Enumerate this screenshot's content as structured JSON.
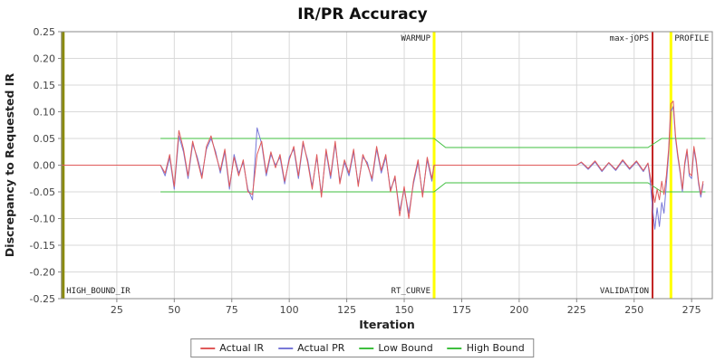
{
  "chart_data": {
    "type": "line",
    "title": "IR/PR Accuracy",
    "xlabel": "Iteration",
    "ylabel": "Discrepancy to Requested IR",
    "xlim": [
      1,
      284
    ],
    "ylim": [
      -0.25,
      0.25
    ],
    "x_ticks": [
      25,
      50,
      75,
      100,
      125,
      150,
      175,
      200,
      225,
      250,
      275
    ],
    "y_ticks": [
      -0.25,
      -0.2,
      -0.15,
      -0.1,
      -0.05,
      0,
      0.05,
      0.1,
      0.15,
      0.2,
      0.25
    ],
    "y_tick_labels": [
      "-0.25",
      "-0.20",
      "-0.15",
      "-0.10",
      "-0.05",
      "0.00",
      "0.05",
      "0.10",
      "0.15",
      "0.20",
      "0.25"
    ],
    "grid": true,
    "legend_position": "bottom",
    "colors": {
      "background": "#ffffff",
      "plot_border": "#888888",
      "grid": "#d9d9d9",
      "tick_text": "#444444",
      "title": "#111111"
    },
    "markers": [
      {
        "x": 1.5,
        "color": "#8b8b00",
        "width": 4,
        "top_label": "",
        "bottom_label": "HIGH_BOUND_IR",
        "side": "right"
      },
      {
        "x": 163,
        "color": "#ffff00",
        "width": 3,
        "top_label": "WARMUP",
        "bottom_label": "RT_CURVE",
        "side": "left"
      },
      {
        "x": 258,
        "color": "#c22222",
        "width": 2,
        "top_label": "max-jOPS",
        "bottom_label": "VALIDATION",
        "side": "left"
      },
      {
        "x": 266,
        "color": "#ffff00",
        "width": 3,
        "top_label": "PROFILE",
        "bottom_label": "",
        "side": "right"
      }
    ],
    "series": [
      {
        "name": "Actual IR",
        "color": "#e05a5a",
        "points": [
          [
            1,
            0
          ],
          [
            15,
            0
          ],
          [
            30,
            0
          ],
          [
            44,
            0
          ],
          [
            46,
            -0.015
          ],
          [
            48,
            0.02
          ],
          [
            50,
            -0.04
          ],
          [
            52,
            0.065
          ],
          [
            54,
            0.03
          ],
          [
            56,
            -0.02
          ],
          [
            58,
            0.045
          ],
          [
            60,
            0.01
          ],
          [
            62,
            -0.025
          ],
          [
            64,
            0.035
          ],
          [
            66,
            0.055
          ],
          [
            68,
            0.02
          ],
          [
            70,
            -0.01
          ],
          [
            72,
            0.03
          ],
          [
            74,
            -0.04
          ],
          [
            76,
            0.015
          ],
          [
            78,
            -0.02
          ],
          [
            80,
            0.01
          ],
          [
            82,
            -0.05
          ],
          [
            84,
            -0.055
          ],
          [
            86,
            0.02
          ],
          [
            88,
            0.045
          ],
          [
            90,
            -0.015
          ],
          [
            92,
            0.025
          ],
          [
            94,
            -0.005
          ],
          [
            96,
            0.02
          ],
          [
            98,
            -0.03
          ],
          [
            100,
            0.01
          ],
          [
            102,
            0.035
          ],
          [
            104,
            -0.02
          ],
          [
            106,
            0.045
          ],
          [
            108,
            0.005
          ],
          [
            110,
            -0.045
          ],
          [
            112,
            0.02
          ],
          [
            114,
            -0.06
          ],
          [
            116,
            0.03
          ],
          [
            118,
            -0.02
          ],
          [
            120,
            0.045
          ],
          [
            122,
            -0.035
          ],
          [
            124,
            0.01
          ],
          [
            126,
            -0.015
          ],
          [
            128,
            0.03
          ],
          [
            130,
            -0.04
          ],
          [
            132,
            0.02
          ],
          [
            134,
            0
          ],
          [
            136,
            -0.025
          ],
          [
            138,
            0.035
          ],
          [
            140,
            -0.01
          ],
          [
            142,
            0.02
          ],
          [
            144,
            -0.05
          ],
          [
            146,
            -0.02
          ],
          [
            148,
            -0.095
          ],
          [
            150,
            -0.04
          ],
          [
            152,
            -0.1
          ],
          [
            154,
            -0.03
          ],
          [
            156,
            0.01
          ],
          [
            158,
            -0.06
          ],
          [
            160,
            0.015
          ],
          [
            162,
            -0.025
          ],
          [
            163,
            0
          ],
          [
            170,
            0
          ],
          [
            180,
            0
          ],
          [
            190,
            0
          ],
          [
            200,
            0
          ],
          [
            210,
            0
          ],
          [
            220,
            0
          ],
          [
            225,
            0
          ],
          [
            227,
            0.006
          ],
          [
            230,
            -0.006
          ],
          [
            233,
            0.008
          ],
          [
            236,
            -0.01
          ],
          [
            239,
            0.005
          ],
          [
            242,
            -0.008
          ],
          [
            245,
            0.01
          ],
          [
            248,
            -0.006
          ],
          [
            251,
            0.008
          ],
          [
            254,
            -0.01
          ],
          [
            256,
            0.004
          ],
          [
            257,
            -0.02
          ],
          [
            259,
            -0.07
          ],
          [
            260,
            -0.045
          ],
          [
            261,
            -0.065
          ],
          [
            262,
            -0.03
          ],
          [
            263,
            -0.055
          ],
          [
            264,
            -0.02
          ],
          [
            265,
            0.03
          ],
          [
            266,
            0.115
          ],
          [
            267,
            0.12
          ],
          [
            268,
            0.055
          ],
          [
            269,
            0.02
          ],
          [
            270,
            -0.01
          ],
          [
            271,
            -0.045
          ],
          [
            272,
            0.005
          ],
          [
            273,
            0.03
          ],
          [
            274,
            -0.015
          ],
          [
            275,
            -0.02
          ],
          [
            276,
            0.035
          ],
          [
            277,
            0.01
          ],
          [
            278,
            -0.03
          ],
          [
            279,
            -0.055
          ],
          [
            280,
            -0.03
          ]
        ]
      },
      {
        "name": "Actual PR",
        "color": "#7878d8",
        "points": [
          [
            1,
            0
          ],
          [
            15,
            0
          ],
          [
            30,
            0
          ],
          [
            44,
            0
          ],
          [
            46,
            -0.02
          ],
          [
            48,
            0.015
          ],
          [
            50,
            -0.045
          ],
          [
            52,
            0.055
          ],
          [
            54,
            0.025
          ],
          [
            56,
            -0.025
          ],
          [
            58,
            0.04
          ],
          [
            60,
            0.015
          ],
          [
            62,
            -0.02
          ],
          [
            64,
            0.03
          ],
          [
            66,
            0.05
          ],
          [
            68,
            0.025
          ],
          [
            70,
            -0.015
          ],
          [
            72,
            0.025
          ],
          [
            74,
            -0.045
          ],
          [
            76,
            0.02
          ],
          [
            78,
            -0.015
          ],
          [
            80,
            0.005
          ],
          [
            82,
            -0.045
          ],
          [
            84,
            -0.065
          ],
          [
            86,
            0.07
          ],
          [
            88,
            0.04
          ],
          [
            90,
            -0.02
          ],
          [
            92,
            0.02
          ],
          [
            94,
            0
          ],
          [
            96,
            0.015
          ],
          [
            98,
            -0.035
          ],
          [
            100,
            0.015
          ],
          [
            102,
            0.03
          ],
          [
            104,
            -0.025
          ],
          [
            106,
            0.04
          ],
          [
            108,
            0.01
          ],
          [
            110,
            -0.04
          ],
          [
            112,
            0.015
          ],
          [
            114,
            -0.055
          ],
          [
            116,
            0.025
          ],
          [
            118,
            -0.025
          ],
          [
            120,
            0.04
          ],
          [
            122,
            -0.03
          ],
          [
            124,
            0.005
          ],
          [
            126,
            -0.02
          ],
          [
            128,
            0.025
          ],
          [
            130,
            -0.035
          ],
          [
            132,
            0.015
          ],
          [
            134,
            0.005
          ],
          [
            136,
            -0.03
          ],
          [
            138,
            0.03
          ],
          [
            140,
            -0.015
          ],
          [
            142,
            0.015
          ],
          [
            144,
            -0.045
          ],
          [
            146,
            -0.025
          ],
          [
            148,
            -0.085
          ],
          [
            150,
            -0.045
          ],
          [
            152,
            -0.09
          ],
          [
            154,
            -0.035
          ],
          [
            156,
            0.005
          ],
          [
            158,
            -0.055
          ],
          [
            160,
            0.01
          ],
          [
            162,
            -0.03
          ],
          [
            163,
            0
          ],
          [
            170,
            0
          ],
          [
            180,
            0
          ],
          [
            190,
            0
          ],
          [
            200,
            0
          ],
          [
            210,
            0
          ],
          [
            220,
            0
          ],
          [
            225,
            0
          ],
          [
            227,
            0.005
          ],
          [
            230,
            -0.008
          ],
          [
            233,
            0.006
          ],
          [
            236,
            -0.012
          ],
          [
            239,
            0.004
          ],
          [
            242,
            -0.01
          ],
          [
            245,
            0.008
          ],
          [
            248,
            -0.008
          ],
          [
            251,
            0.006
          ],
          [
            254,
            -0.012
          ],
          [
            256,
            0.003
          ],
          [
            257,
            -0.03
          ],
          [
            258,
            -0.08
          ],
          [
            259,
            -0.12
          ],
          [
            260,
            -0.08
          ],
          [
            261,
            -0.115
          ],
          [
            262,
            -0.07
          ],
          [
            263,
            -0.09
          ],
          [
            264,
            -0.035
          ],
          [
            265,
            0.02
          ],
          [
            266,
            0.1
          ],
          [
            267,
            0.11
          ],
          [
            268,
            0.05
          ],
          [
            269,
            0.015
          ],
          [
            270,
            -0.015
          ],
          [
            271,
            -0.05
          ],
          [
            272,
            0
          ],
          [
            273,
            0.025
          ],
          [
            274,
            -0.02
          ],
          [
            275,
            -0.025
          ],
          [
            276,
            0.03
          ],
          [
            277,
            0.005
          ],
          [
            278,
            -0.035
          ],
          [
            279,
            -0.06
          ],
          [
            280,
            -0.035
          ]
        ]
      },
      {
        "name": "Low Bound",
        "color": "#3fbf3f",
        "points": [
          [
            44,
            -0.05
          ],
          [
            163,
            -0.05
          ],
          [
            168,
            -0.033
          ],
          [
            256,
            -0.033
          ],
          [
            262,
            -0.05
          ],
          [
            281,
            -0.05
          ]
        ]
      },
      {
        "name": "High Bound",
        "color": "#3fbf3f",
        "points": [
          [
            44,
            0.05
          ],
          [
            163,
            0.05
          ],
          [
            168,
            0.033
          ],
          [
            256,
            0.033
          ],
          [
            262,
            0.05
          ],
          [
            281,
            0.05
          ]
        ]
      }
    ]
  }
}
